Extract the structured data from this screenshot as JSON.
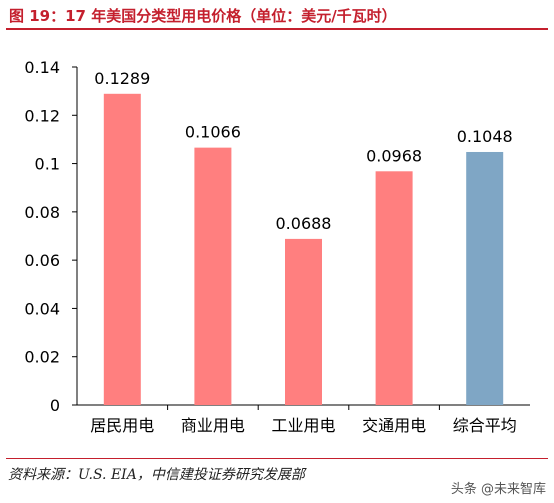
{
  "chart_data": {
    "type": "bar",
    "title": "图 19：17 年美国分类型用电价格（单位：美元/千瓦时）",
    "categories": [
      "居民用电",
      "商业用电",
      "工业用电",
      "交通用电",
      "综合平均"
    ],
    "values": [
      0.1289,
      0.1066,
      0.0688,
      0.0968,
      0.1048
    ],
    "value_labels": [
      "0.1289",
      "0.1066",
      "0.0688",
      "0.0968",
      "0.1048"
    ],
    "bar_colors": [
      "#ff7f7f",
      "#ff7f7f",
      "#ff7f7f",
      "#ff7f7f",
      "#7fa6c5"
    ],
    "ylim": [
      0,
      0.14
    ],
    "yticks": [
      0,
      0.02,
      0.04,
      0.06,
      0.08,
      0.1,
      0.12,
      0.14
    ],
    "ytick_labels": [
      "0",
      "0.02",
      "0.04",
      "0.06",
      "0.08",
      "0.1",
      "0.12",
      "0.14"
    ],
    "xlabel": "",
    "ylabel": "",
    "grid": false
  },
  "source_text": "资料来源：U.S. EIA，中信建投证券研究发展部",
  "watermark_text": "头条 @未来智库",
  "colors": {
    "title": "#c41f2d",
    "rule": "#c41f2d",
    "axis": "#000000"
  }
}
